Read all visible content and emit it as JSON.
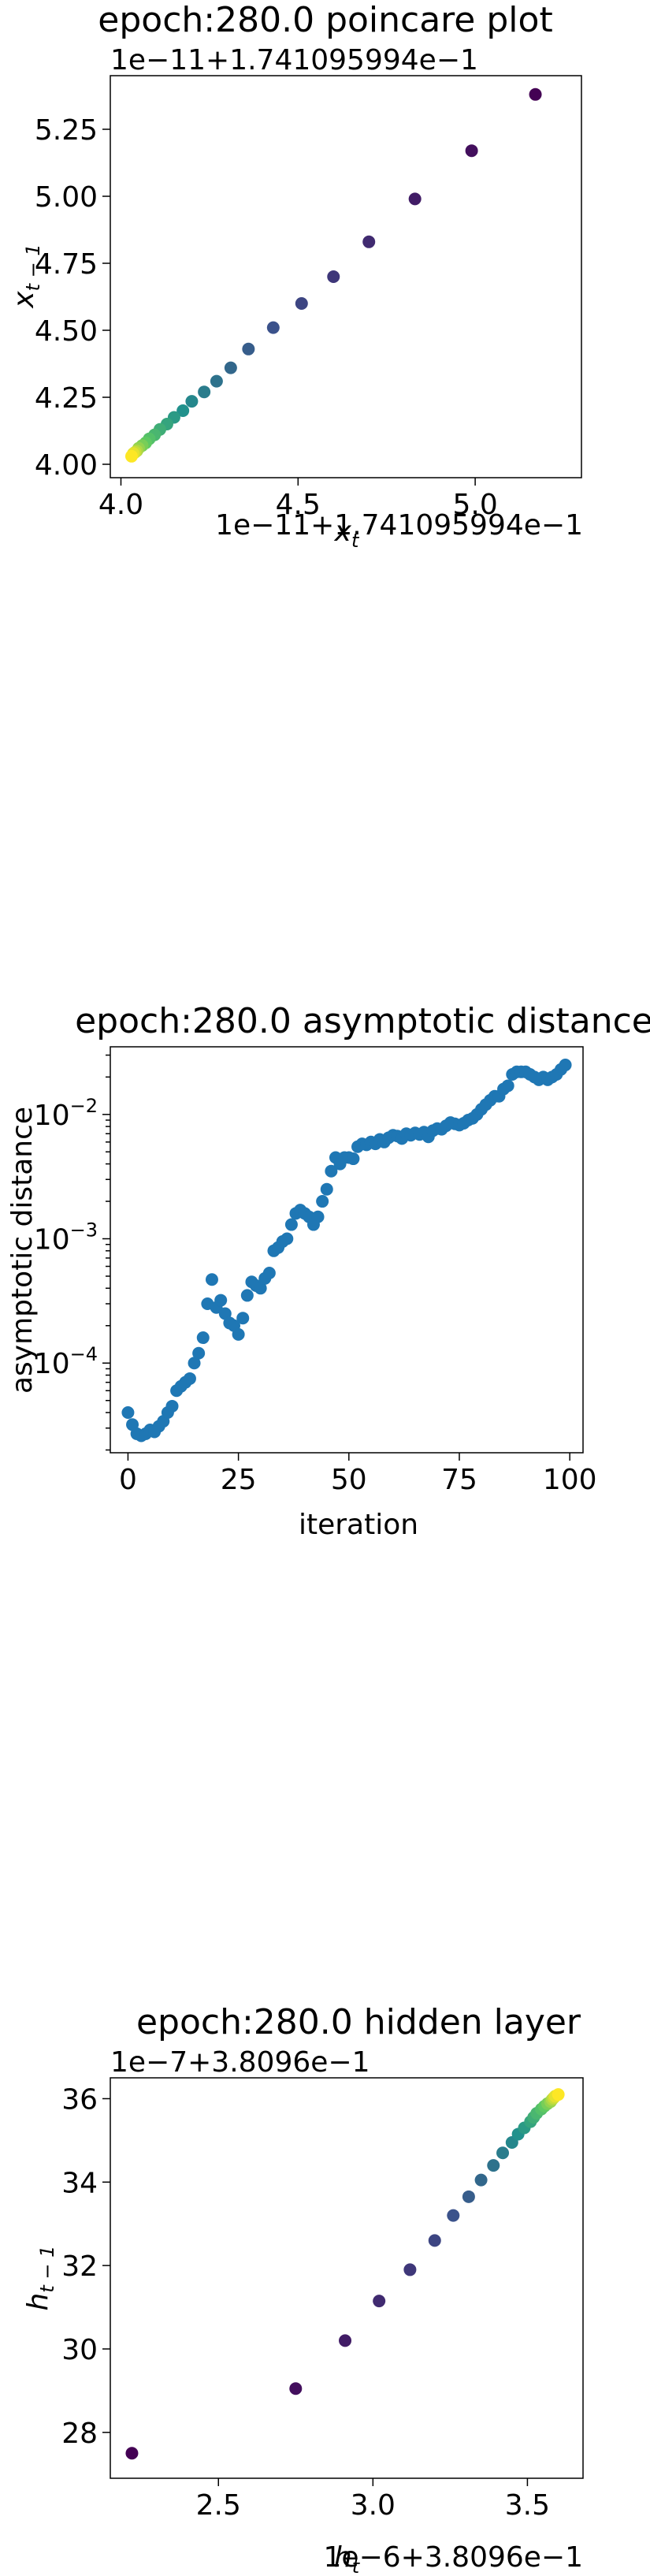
{
  "chart_data": [
    {
      "type": "scatter",
      "title": "epoch:280.0 poincare plot",
      "xlabel": "x_t",
      "ylabel": "x_{t−1}",
      "x_offset_label": "1e−11+1.741095994e−1",
      "y_offset_label": "1e−11+1.741095994e−1",
      "xlim": [
        3.97,
        5.3
      ],
      "ylim": [
        3.95,
        5.45
      ],
      "xticks": [
        "4.0",
        "4.5",
        "5.0"
      ],
      "yticks": [
        "4.00",
        "4.25",
        "4.50",
        "4.75",
        "5.00",
        "5.25"
      ],
      "colormap": [
        "#440154",
        "#3b528b",
        "#21918c",
        "#5ec962",
        "#fde725"
      ],
      "points": {
        "x": [
          5.17,
          4.99,
          4.83,
          4.7,
          4.6,
          4.51,
          4.43,
          4.36,
          4.31,
          4.27,
          4.235,
          4.2,
          4.175,
          4.15,
          4.13,
          4.11,
          4.095,
          4.08,
          4.07,
          4.06,
          4.05,
          4.045,
          4.04,
          4.035,
          4.03
        ],
        "y": [
          5.38,
          5.17,
          4.99,
          4.83,
          4.7,
          4.6,
          4.51,
          4.43,
          4.36,
          4.31,
          4.27,
          4.235,
          4.2,
          4.175,
          4.15,
          4.13,
          4.11,
          4.095,
          4.08,
          4.07,
          4.06,
          4.05,
          4.045,
          4.04,
          4.03
        ]
      }
    },
    {
      "type": "scatter",
      "title": "epoch:280.0 asymptotic distance",
      "xlabel": "iteration",
      "ylabel": "asymptotic distance",
      "yscale": "log",
      "xlim": [
        -4,
        103
      ],
      "ylim": [
        1.9e-05,
        0.035
      ],
      "xticks": [
        "0",
        "25",
        "50",
        "75",
        "100"
      ],
      "yticks": [
        "10^{−4}",
        "10^{−3}",
        "10^{−2}"
      ],
      "color": "#1f77b4",
      "points": {
        "x": [
          0,
          1,
          2,
          3,
          4,
          5,
          6,
          7,
          8,
          9,
          10,
          11,
          12,
          13,
          14,
          15,
          16,
          17,
          18,
          19,
          20,
          21,
          22,
          23,
          24,
          25,
          26,
          27,
          28,
          29,
          30,
          31,
          32,
          33,
          34,
          35,
          36,
          37,
          38,
          39,
          40,
          41,
          42,
          43,
          44,
          45,
          46,
          47,
          48,
          49,
          50,
          51,
          52,
          53,
          54,
          55,
          56,
          57,
          58,
          59,
          60,
          61,
          62,
          63,
          64,
          65,
          66,
          67,
          68,
          69,
          70,
          71,
          72,
          73,
          74,
          75,
          76,
          77,
          78,
          79,
          80,
          81,
          82,
          83,
          84,
          85,
          86,
          87,
          88,
          89,
          90,
          91,
          92,
          93,
          94,
          95,
          96,
          97,
          98,
          99
        ],
        "y": [
          4e-05,
          3.2e-05,
          2.7e-05,
          2.6e-05,
          2.7e-05,
          2.9e-05,
          2.8e-05,
          3.1e-05,
          3.4e-05,
          4e-05,
          4.5e-05,
          6e-05,
          6.5e-05,
          7e-05,
          7.5e-05,
          0.0001,
          0.00012,
          0.00016,
          0.0003,
          0.00047,
          0.00028,
          0.00032,
          0.00025,
          0.00021,
          0.0002,
          0.00017,
          0.00023,
          0.00035,
          0.00045,
          0.00042,
          0.0004,
          0.00048,
          0.00053,
          0.0008,
          0.00085,
          0.00095,
          0.001,
          0.0013,
          0.0016,
          0.0017,
          0.0016,
          0.0015,
          0.0013,
          0.0015,
          0.002,
          0.0025,
          0.0035,
          0.0045,
          0.004,
          0.0045,
          0.0045,
          0.0044,
          0.0055,
          0.0058,
          0.0057,
          0.006,
          0.0058,
          0.0063,
          0.006,
          0.0065,
          0.0068,
          0.0067,
          0.0064,
          0.007,
          0.0068,
          0.0071,
          0.0069,
          0.0072,
          0.0066,
          0.0074,
          0.0077,
          0.0076,
          0.0081,
          0.0086,
          0.0084,
          0.0082,
          0.0085,
          0.009,
          0.0093,
          0.01,
          0.011,
          0.012,
          0.013,
          0.014,
          0.014,
          0.016,
          0.017,
          0.021,
          0.022,
          0.022,
          0.022,
          0.021,
          0.02,
          0.019,
          0.02,
          0.019,
          0.02,
          0.021,
          0.023,
          0.025
        ]
      }
    },
    {
      "type": "scatter",
      "title": "epoch:280.0 hidden layer",
      "xlabel": "h_t",
      "ylabel": "h_{t−1}",
      "x_offset_label": "1e−6+3.8096e−1",
      "y_offset_label": "1e−7+3.8096e−1",
      "xlim": [
        2.15,
        3.68
      ],
      "ylim": [
        26.9,
        36.5
      ],
      "xticks": [
        "2.5",
        "3.0",
        "3.5"
      ],
      "yticks": [
        "28",
        "30",
        "32",
        "34",
        "36"
      ],
      "colormap": [
        "#440154",
        "#3b528b",
        "#21918c",
        "#5ec962",
        "#fde725"
      ],
      "points": {
        "x": [
          2.22,
          2.75,
          2.91,
          3.02,
          3.12,
          3.2,
          3.26,
          3.31,
          3.35,
          3.39,
          3.42,
          3.45,
          3.47,
          3.49,
          3.51,
          3.52,
          3.53,
          3.545,
          3.555,
          3.565,
          3.575,
          3.58,
          3.585,
          3.59,
          3.6
        ],
        "y": [
          27.5,
          29.05,
          30.2,
          31.15,
          31.9,
          32.6,
          33.2,
          33.65,
          34.05,
          34.4,
          34.7,
          34.95,
          35.15,
          35.3,
          35.45,
          35.55,
          35.65,
          35.75,
          35.82,
          35.88,
          35.93,
          35.98,
          36.02,
          36.06,
          36.1
        ]
      }
    }
  ]
}
